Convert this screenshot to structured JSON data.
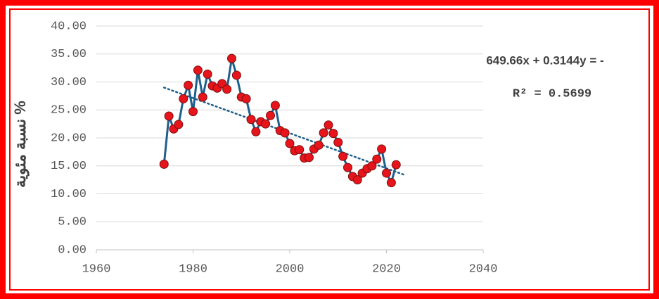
{
  "chart_data": {
    "type": "line",
    "y_label": "نسبة مئوية %",
    "annotations": [
      "649.66x + 0.3144y = -",
      "R² = 0.5699"
    ],
    "x": [
      1974,
      1975,
      1976,
      1977,
      1978,
      1979,
      1980,
      1981,
      1982,
      1983,
      1984,
      1985,
      1986,
      1987,
      1988,
      1989,
      1990,
      1991,
      1992,
      1993,
      1994,
      1995,
      1996,
      1997,
      1998,
      1999,
      2000,
      2001,
      2002,
      2003,
      2004,
      2005,
      2006,
      2007,
      2008,
      2009,
      2010,
      2011,
      2012,
      2013,
      2014,
      2015,
      2016,
      2017,
      2018,
      2019,
      2020,
      2021,
      2022
    ],
    "series": [
      {
        "color": "#1f5f8b",
        "marker_color": "#e8141b",
        "values": [
          15.3,
          23.9,
          21.6,
          22.4,
          27.0,
          29.4,
          24.7,
          32.1,
          27.3,
          31.4,
          29.3,
          28.9,
          29.7,
          28.7,
          34.2,
          31.2,
          27.3,
          27.0,
          23.3,
          21.1,
          22.9,
          22.5,
          24.0,
          25.8,
          21.3,
          20.9,
          19.0,
          17.7,
          17.9,
          16.4,
          16.5,
          18.0,
          18.7,
          20.9,
          22.3,
          20.8,
          19.2,
          16.7,
          14.7,
          13.1,
          12.5,
          13.7,
          14.5,
          15.0,
          16.2,
          18.0,
          13.7,
          12.0,
          15.2
        ]
      }
    ],
    "trendline": {
      "color": "#1f5f8b",
      "x": [
        1974,
        2024
      ],
      "values": [
        29.0,
        13.3
      ]
    },
    "xlim": [
      1960,
      2040
    ],
    "xticks": [
      1960,
      1980,
      2000,
      2020,
      2040
    ],
    "ylim": [
      0,
      40
    ],
    "yticks": [
      {
        "value": 0,
        "label": "0.00"
      },
      {
        "value": 5,
        "label": "5.00"
      },
      {
        "value": 10,
        "label": "10.00"
      },
      {
        "value": 15,
        "label": "15.00"
      },
      {
        "value": 20,
        "label": "20.00"
      },
      {
        "value": 25,
        "label": "25.00"
      },
      {
        "value": 30,
        "label": "30.00"
      },
      {
        "value": 35,
        "label": "35.00"
      },
      {
        "value": 40,
        "label": "40.00"
      }
    ],
    "grid": true
  }
}
